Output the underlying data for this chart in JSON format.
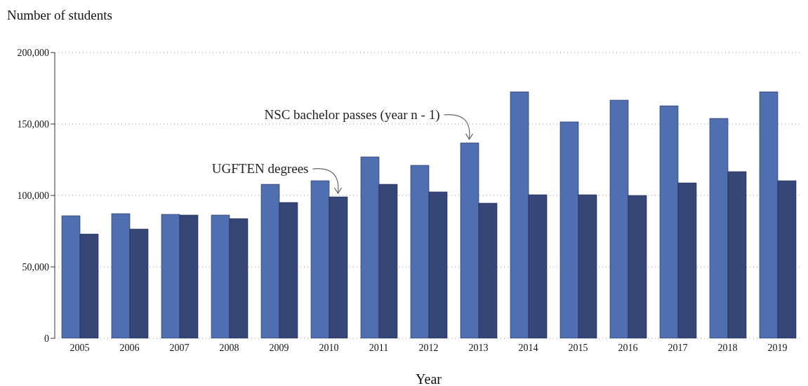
{
  "chart_data": {
    "type": "bar",
    "xlabel": "Year",
    "ylabel": "Number of students",
    "categories": [
      "2005",
      "2006",
      "2007",
      "2008",
      "2009",
      "2010",
      "2011",
      "2012",
      "2013",
      "2014",
      "2015",
      "2016",
      "2017",
      "2018",
      "2019"
    ],
    "series": [
      {
        "name": "NSC bachelor passes (year n - 1)",
        "color": "#4f6fb0",
        "values": [
          85800,
          87300,
          86800,
          86300,
          107800,
          110300,
          127000,
          121100,
          136800,
          172500,
          151500,
          166700,
          162700,
          153900,
          172500
        ]
      },
      {
        "name": "UGFTEN degrees",
        "color": "#364677",
        "values": [
          73000,
          76500,
          86300,
          83800,
          95100,
          99000,
          107800,
          102500,
          94600,
          100500,
          100500,
          100000,
          108800,
          116700,
          110300
        ]
      }
    ],
    "ylim": [
      0,
      200000
    ],
    "yticks": [
      0,
      {
        "value": 50000,
        "label": "50,000"
      },
      {
        "value": 100000,
        "label": "100,000"
      },
      {
        "value": 150000,
        "label": "150,000"
      },
      {
        "value": 200000,
        "label": "200,000"
      }
    ],
    "grid": "y",
    "legend": false
  }
}
